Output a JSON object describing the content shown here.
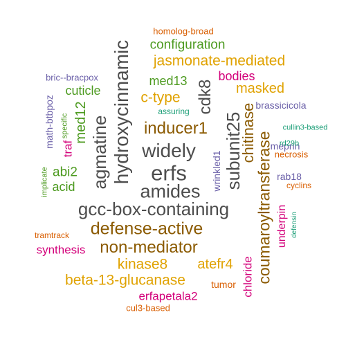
{
  "colors": {
    "dark_gray": "#4d4d4d",
    "brown": "#8b5a00",
    "gold": "#e0a200",
    "green": "#4c9a1f",
    "magenta": "#d3007a",
    "purple": "#6a5fa8",
    "orange_red": "#d95f02",
    "teal": "#1b9e77"
  },
  "words": [
    {
      "text": "gcc-box-containing",
      "color": "dark_gray"
    },
    {
      "text": "erfs",
      "color": "dark_gray"
    },
    {
      "text": "amides",
      "color": "dark_gray"
    },
    {
      "text": "widely",
      "color": "dark_gray"
    },
    {
      "text": "hydroxycinnamic",
      "color": "dark_gray"
    },
    {
      "text": "agmatine",
      "color": "dark_gray"
    },
    {
      "text": "subunit25",
      "color": "dark_gray"
    },
    {
      "text": "cdk8",
      "color": "dark_gray"
    },
    {
      "text": "defense-active",
      "color": "brown"
    },
    {
      "text": "non-mediator",
      "color": "brown"
    },
    {
      "text": "inducer1",
      "color": "brown"
    },
    {
      "text": "coumaroyltransferase",
      "color": "brown"
    },
    {
      "text": "chitinase",
      "color": "brown"
    },
    {
      "text": "atefr4",
      "color": "gold"
    },
    {
      "text": "jasmonate-mediated",
      "color": "gold"
    },
    {
      "text": "c-type",
      "color": "gold"
    },
    {
      "text": "masked",
      "color": "gold"
    },
    {
      "text": "kinase8",
      "color": "gold"
    },
    {
      "text": "beta-13-glucanase",
      "color": "gold"
    },
    {
      "text": "configuration",
      "color": "green"
    },
    {
      "text": "med13",
      "color": "green"
    },
    {
      "text": "cuticle",
      "color": "green"
    },
    {
      "text": "med12",
      "color": "green"
    },
    {
      "text": "abi2",
      "color": "green"
    },
    {
      "text": "acid",
      "color": "green"
    },
    {
      "text": "specific",
      "color": "green"
    },
    {
      "text": "implicate",
      "color": "green"
    },
    {
      "text": "bodies",
      "color": "magenta"
    },
    {
      "text": "traf",
      "color": "magenta"
    },
    {
      "text": "synthesis",
      "color": "magenta"
    },
    {
      "text": "underpin",
      "color": "magenta"
    },
    {
      "text": "chloride",
      "color": "magenta"
    },
    {
      "text": "erfapetala2",
      "color": "magenta"
    },
    {
      "text": "bric--bracpox",
      "color": "purple"
    },
    {
      "text": "math-btbpoz",
      "color": "purple"
    },
    {
      "text": "brassicicola",
      "color": "purple"
    },
    {
      "text": "meprin",
      "color": "purple"
    },
    {
      "text": "rab18",
      "color": "purple"
    },
    {
      "text": "wrinkled1",
      "color": "purple"
    },
    {
      "text": "homolog-broad",
      "color": "orange_red"
    },
    {
      "text": "necrosis",
      "color": "orange_red"
    },
    {
      "text": "cyclins",
      "color": "orange_red"
    },
    {
      "text": "tramtrack",
      "color": "orange_red"
    },
    {
      "text": "tumor",
      "color": "orange_red"
    },
    {
      "text": "cul3-based",
      "color": "orange_red"
    },
    {
      "text": "assuring",
      "color": "teal"
    },
    {
      "text": "cullin3-based",
      "color": "teal"
    },
    {
      "text": "rd29b",
      "color": "teal"
    },
    {
      "text": "defensin",
      "color": "teal"
    }
  ]
}
